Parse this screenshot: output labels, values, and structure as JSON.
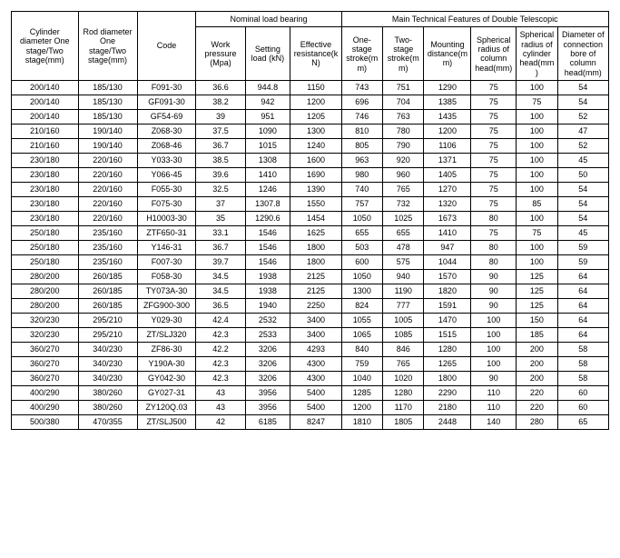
{
  "header": {
    "group_nominal": "Nominal load bearing",
    "group_main": "Main Technical Features of Double Telescopic",
    "cyl_diam": "Cylinder diameter One stage/Two stage(mm)",
    "rod_diam": "Rod diameter One stage/Two stage(mm)",
    "code": "Code",
    "work_pressure": "Work pressure (Mpa)",
    "setting_load": "Setting load (kN)",
    "eff_resist": "Effective resistance(kN)",
    "one_stage_stroke": "One-stage stroke(mm)",
    "two_stage_stroke": "Two-stage stroke(mm)",
    "mounting_dist": "Mounting distance(mm)",
    "spherical_radius": "Spherical radius of column head(mm)",
    "spherical_radius_cyl": "Spherical radius of cylinder head(mm)",
    "diam_conn": "Diameter of connection bore of column head(mm)"
  },
  "rows": [
    [
      "200/140",
      "185/130",
      "F091-30",
      "36.6",
      "944.8",
      "1150",
      "743",
      "751",
      "1290",
      "75",
      "100",
      "54"
    ],
    [
      "200/140",
      "185/130",
      "GF091-30",
      "38.2",
      "942",
      "1200",
      "696",
      "704",
      "1385",
      "75",
      "75",
      "54"
    ],
    [
      "200/140",
      "185/130",
      "GF54-69",
      "39",
      "951",
      "1205",
      "746",
      "763",
      "1435",
      "75",
      "100",
      "52"
    ],
    [
      "210/160",
      "190/140",
      "Z068-30",
      "37.5",
      "1090",
      "1300",
      "810",
      "780",
      "1200",
      "75",
      "100",
      "47"
    ],
    [
      "210/160",
      "190/140",
      "Z068-46",
      "36.7",
      "1015",
      "1240",
      "805",
      "790",
      "1106",
      "75",
      "100",
      "52"
    ],
    [
      "230/180",
      "220/160",
      "Y033-30",
      "38.5",
      "1308",
      "1600",
      "963",
      "920",
      "1371",
      "75",
      "100",
      "45"
    ],
    [
      "230/180",
      "220/160",
      "Y066-45",
      "39.6",
      "1410",
      "1690",
      "980",
      "960",
      "1405",
      "75",
      "100",
      "50"
    ],
    [
      "230/180",
      "220/160",
      "F055-30",
      "32.5",
      "1246",
      "1390",
      "740",
      "765",
      "1270",
      "75",
      "100",
      "54"
    ],
    [
      "230/180",
      "220/160",
      "F075-30",
      "37",
      "1307.8",
      "1550",
      "757",
      "732",
      "1320",
      "75",
      "85",
      "54"
    ],
    [
      "230/180",
      "220/160",
      "H10003-30",
      "35",
      "1290.6",
      "1454",
      "1050",
      "1025",
      "1673",
      "80",
      "100",
      "54"
    ],
    [
      "250/180",
      "235/160",
      "ZTF650-31",
      "33.1",
      "1546",
      "1625",
      "655",
      "655",
      "1410",
      "75",
      "75",
      "45"
    ],
    [
      "250/180",
      "235/160",
      "Y146-31",
      "36.7",
      "1546",
      "1800",
      "503",
      "478",
      "947",
      "80",
      "100",
      "59"
    ],
    [
      "250/180",
      "235/160",
      "F007-30",
      "39.7",
      "1546",
      "1800",
      "600",
      "575",
      "1044",
      "80",
      "100",
      "59"
    ],
    [
      "280/200",
      "260/185",
      "F058-30",
      "34.5",
      "1938",
      "2125",
      "1050",
      "940",
      "1570",
      "90",
      "125",
      "64"
    ],
    [
      "280/200",
      "260/185",
      "TY073A-30",
      "34.5",
      "1938",
      "2125",
      "1300",
      "1190",
      "1820",
      "90",
      "125",
      "64"
    ],
    [
      "280/200",
      "260/185",
      "ZFG900-300",
      "36.5",
      "1940",
      "2250",
      "824",
      "777",
      "1591",
      "90",
      "125",
      "64"
    ],
    [
      "320/230",
      "295/210",
      "Y029-30",
      "42.4",
      "2532",
      "3400",
      "1055",
      "1005",
      "1470",
      "100",
      "150",
      "64"
    ],
    [
      "320/230",
      "295/210",
      "ZT/SLJ320",
      "42.3",
      "2533",
      "3400",
      "1065",
      "1085",
      "1515",
      "100",
      "185",
      "64"
    ],
    [
      "360/270",
      "340/230",
      "ZF86-30",
      "42.2",
      "3206",
      "4293",
      "840",
      "846",
      "1280",
      "100",
      "200",
      "58"
    ],
    [
      "360/270",
      "340/230",
      "Y190A-30",
      "42.3",
      "3206",
      "4300",
      "759",
      "765",
      "1265",
      "100",
      "200",
      "58"
    ],
    [
      "360/270",
      "340/230",
      "GY042-30",
      "42.3",
      "3206",
      "4300",
      "1040",
      "1020",
      "1800",
      "90",
      "200",
      "58"
    ],
    [
      "400/290",
      "380/260",
      "GY027-31",
      "43",
      "3956",
      "5400",
      "1285",
      "1280",
      "2290",
      "110",
      "220",
      "60"
    ],
    [
      "400/290",
      "380/260",
      "ZY120Q.03",
      "43",
      "3956",
      "5400",
      "1200",
      "1170",
      "2180",
      "110",
      "220",
      "60"
    ],
    [
      "500/380",
      "470/355",
      "ZT/SLJ500",
      "42",
      "6185",
      "8247",
      "1810",
      "1805",
      "2448",
      "140",
      "280",
      "65"
    ]
  ]
}
